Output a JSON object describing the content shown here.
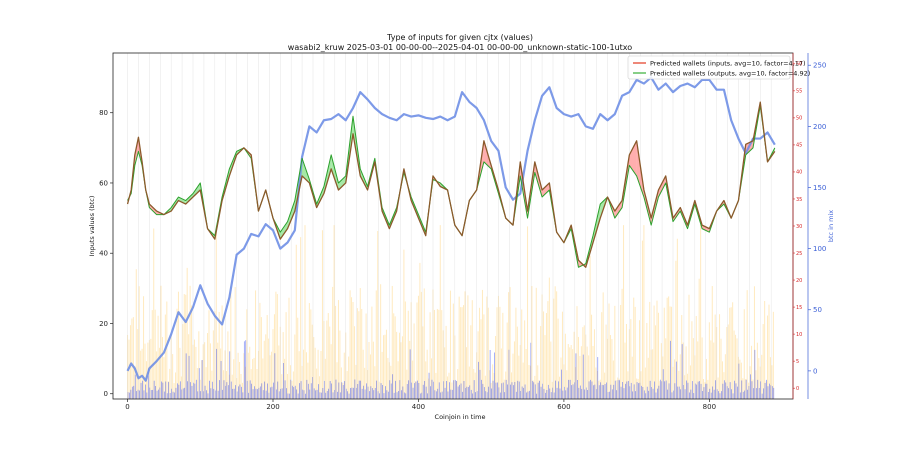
{
  "chart_data": {
    "type": "line",
    "title": "Type of inputs for given cjtx (values)",
    "subtitle": "wasabi2_kruw 2025-03-01 00-00-00--2025-04-01 00-00-00_unknown-static-100-1utxo",
    "xlabel": "Coinjoin in time",
    "ylabel": "Inputs values (btc)",
    "y2label": "btc in mix",
    "xlim": [
      -20,
      915
    ],
    "ylim": [
      -1.5,
      97
    ],
    "y2lim": [
      -23,
      260
    ],
    "y3lim": [
      -2,
      62
    ],
    "x_ticks": [
      "0",
      "200",
      "400",
      "600",
      "800"
    ],
    "y_ticks": [
      "0",
      "20",
      "40",
      "60",
      "80"
    ],
    "y2_ticks": [
      "0",
      "50",
      "100",
      "150",
      "200",
      "250"
    ],
    "y3_ticks": [
      "0",
      "5",
      "10",
      "15",
      "20",
      "25",
      "30",
      "35",
      "40",
      "45",
      "50",
      "55",
      "60"
    ],
    "legend_position": "top-right",
    "legend": [
      {
        "label": "Predicted wallets (inputs, avg=10, factor=4.17)",
        "color": "#e8604c"
      },
      {
        "label": "Predicted wallets (outputs, avg=10, factor=4.92)",
        "color": "#5fbf5f"
      }
    ],
    "colors": {
      "inputs": "#d62728",
      "outputs": "#2ca02c",
      "btc_in_mix": "#3b5fd6",
      "bars_yellow": "#ffd98a",
      "bars_blue": "#4a5cf0",
      "red_axis": "#d62728",
      "blue_axis": "#3b5fd6"
    },
    "series_inputs": {
      "x": [
        0,
        5,
        10,
        15,
        20,
        25,
        30,
        40,
        50,
        60,
        70,
        80,
        90,
        100,
        110,
        120,
        130,
        140,
        150,
        160,
        170,
        180,
        190,
        200,
        210,
        220,
        230,
        240,
        250,
        260,
        270,
        280,
        290,
        300,
        310,
        320,
        330,
        340,
        350,
        360,
        370,
        380,
        390,
        400,
        410,
        420,
        430,
        440,
        450,
        460,
        470,
        480,
        490,
        500,
        510,
        520,
        530,
        540,
        550,
        560,
        570,
        580,
        590,
        600,
        610,
        620,
        630,
        640,
        650,
        660,
        670,
        680,
        690,
        700,
        710,
        720,
        730,
        740,
        750,
        760,
        770,
        780,
        790,
        800,
        810,
        820,
        830,
        840,
        850,
        860,
        870,
        880,
        890
      ],
      "y": [
        54,
        58,
        68,
        73,
        66,
        58,
        54,
        52,
        51,
        52,
        55,
        54,
        56,
        58,
        47,
        44,
        55,
        62,
        68,
        70,
        68,
        52,
        58,
        50,
        44,
        47,
        52,
        62,
        60,
        53,
        57,
        64,
        58,
        60,
        74,
        62,
        58,
        66,
        52,
        47,
        52,
        64,
        55,
        50,
        45,
        62,
        59,
        58,
        48,
        45,
        55,
        58,
        72,
        65,
        58,
        50,
        48,
        66,
        52,
        66,
        58,
        60,
        46,
        43,
        48,
        38,
        36,
        43,
        50,
        56,
        52,
        55,
        68,
        72,
        58,
        50,
        58,
        62,
        50,
        53,
        48,
        55,
        48,
        47,
        52,
        55,
        50,
        55,
        71,
        72,
        83,
        66,
        69
      ]
    },
    "series_outputs": {
      "x": [
        0,
        5,
        10,
        15,
        20,
        25,
        30,
        40,
        50,
        60,
        70,
        80,
        90,
        100,
        110,
        120,
        130,
        140,
        150,
        160,
        170,
        180,
        190,
        200,
        210,
        220,
        230,
        240,
        250,
        260,
        270,
        280,
        290,
        300,
        310,
        320,
        330,
        340,
        350,
        360,
        370,
        380,
        390,
        400,
        410,
        420,
        430,
        440,
        450,
        460,
        470,
        480,
        490,
        500,
        510,
        520,
        530,
        540,
        550,
        560,
        570,
        580,
        590,
        600,
        610,
        620,
        630,
        640,
        650,
        660,
        670,
        680,
        690,
        700,
        710,
        720,
        730,
        740,
        750,
        760,
        770,
        780,
        790,
        800,
        810,
        820,
        830,
        840,
        850,
        860,
        870,
        880,
        890
      ],
      "y": [
        55,
        57,
        65,
        69,
        65,
        58,
        53,
        51,
        51,
        53,
        56,
        55,
        57,
        60,
        47,
        45,
        56,
        64,
        69,
        70,
        67,
        52,
        58,
        50,
        46,
        49,
        55,
        67,
        61,
        54,
        59,
        68,
        60,
        62,
        79,
        64,
        59,
        67,
        53,
        48,
        53,
        63,
        56,
        51,
        46,
        61,
        60,
        58,
        48,
        45,
        55,
        58,
        66,
        64,
        57,
        50,
        48,
        62,
        50,
        63,
        56,
        58,
        46,
        43,
        47,
        36,
        37,
        45,
        54,
        56,
        50,
        53,
        65,
        62,
        56,
        48,
        56,
        60,
        49,
        52,
        47,
        54,
        47,
        46,
        52,
        54,
        50,
        55,
        68,
        70,
        82,
        66,
        70
      ]
    },
    "series_btc_in_mix": {
      "x": [
        0,
        5,
        10,
        15,
        20,
        25,
        30,
        40,
        50,
        60,
        70,
        80,
        90,
        100,
        110,
        120,
        130,
        140,
        150,
        160,
        170,
        180,
        190,
        200,
        210,
        220,
        230,
        240,
        250,
        260,
        270,
        280,
        290,
        300,
        310,
        320,
        330,
        340,
        350,
        360,
        370,
        380,
        390,
        400,
        410,
        420,
        430,
        440,
        450,
        460,
        470,
        480,
        490,
        500,
        510,
        520,
        530,
        540,
        550,
        560,
        570,
        580,
        590,
        600,
        610,
        620,
        630,
        640,
        650,
        660,
        670,
        680,
        690,
        700,
        710,
        720,
        730,
        740,
        750,
        760,
        770,
        780,
        790,
        800,
        810,
        820,
        830,
        840,
        850,
        860,
        870,
        880,
        890
      ],
      "y": [
        0,
        6,
        2,
        -6,
        -4,
        -8,
        2,
        8,
        15,
        30,
        48,
        40,
        52,
        70,
        55,
        45,
        38,
        60,
        95,
        100,
        112,
        110,
        120,
        115,
        100,
        105,
        115,
        175,
        200,
        195,
        205,
        206,
        210,
        205,
        215,
        228,
        222,
        215,
        210,
        207,
        205,
        210,
        208,
        209,
        207,
        206,
        208,
        205,
        208,
        228,
        220,
        215,
        205,
        188,
        180,
        150,
        140,
        145,
        180,
        205,
        225,
        232,
        215,
        210,
        208,
        210,
        200,
        198,
        210,
        205,
        210,
        225,
        228,
        238,
        235,
        240,
        230,
        235,
        228,
        233,
        235,
        232,
        238,
        238,
        230,
        230,
        205,
        190,
        178,
        190,
        190,
        195,
        185
      ]
    }
  }
}
